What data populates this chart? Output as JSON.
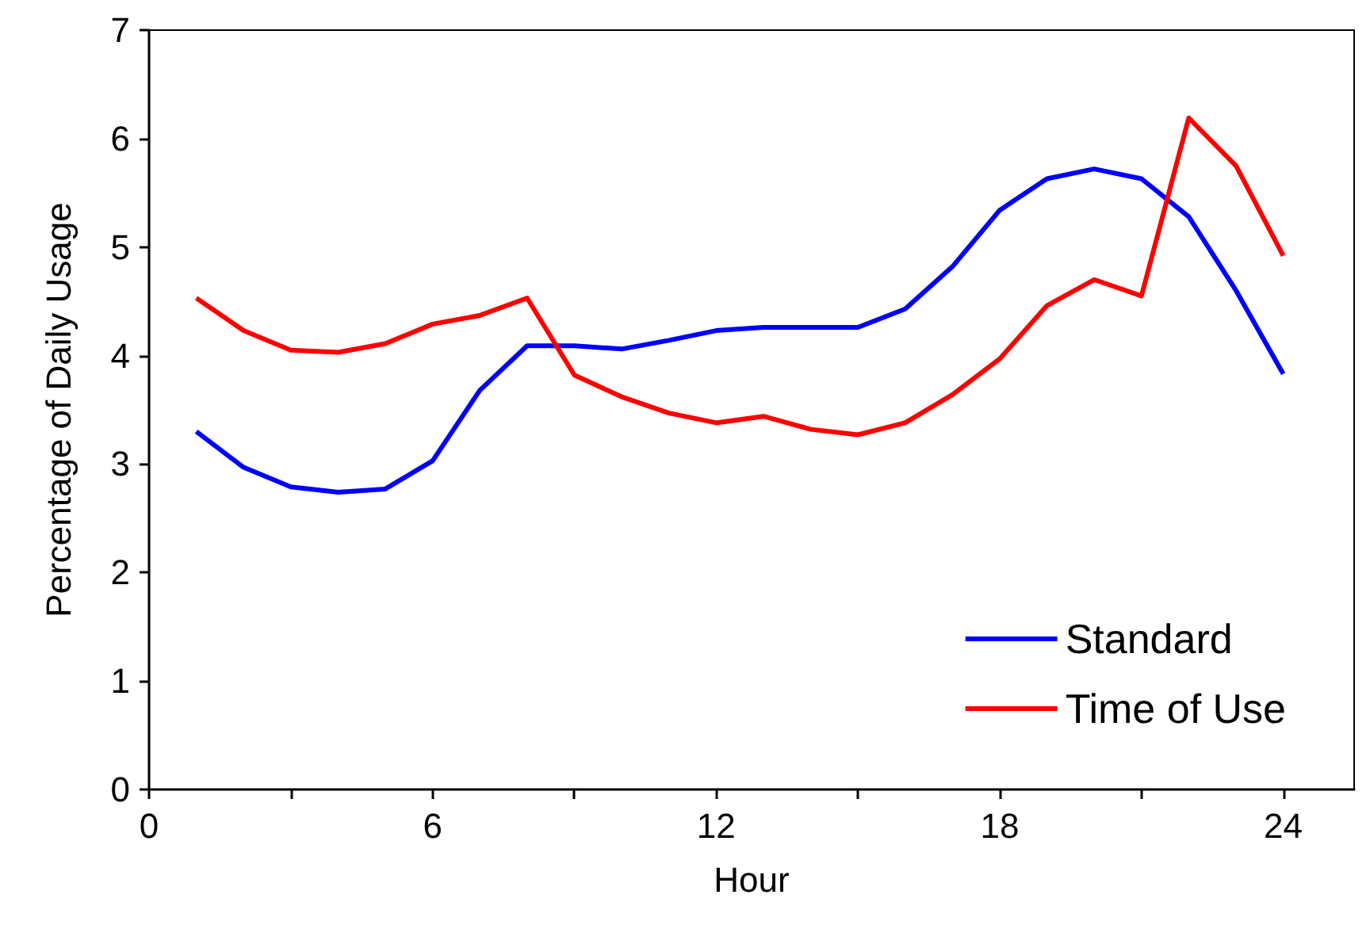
{
  "chart_data": {
    "type": "line",
    "xlabel": "Hour",
    "ylabel": "Percentage of Daily Usage",
    "x": [
      1,
      2,
      3,
      4,
      5,
      6,
      7,
      8,
      9,
      10,
      11,
      12,
      13,
      14,
      15,
      16,
      17,
      18,
      19,
      20,
      21,
      22,
      23,
      24
    ],
    "series": [
      {
        "name": "Standard",
        "color": "#0000ff",
        "values": [
          3.3,
          2.97,
          2.79,
          2.74,
          2.77,
          3.03,
          3.68,
          4.09,
          4.09,
          4.06,
          4.14,
          4.23,
          4.26,
          4.26,
          4.26,
          4.43,
          4.82,
          5.34,
          5.63,
          5.72,
          5.63,
          5.28,
          4.6,
          3.83
        ]
      },
      {
        "name": "Time of Use",
        "color": "#ff0000",
        "values": [
          4.53,
          4.23,
          4.05,
          4.03,
          4.11,
          4.29,
          4.37,
          4.53,
          3.82,
          3.62,
          3.47,
          3.38,
          3.44,
          3.32,
          3.27,
          3.38,
          3.64,
          3.97,
          4.46,
          4.7,
          4.55,
          6.19,
          5.75,
          4.92
        ]
      }
    ],
    "xlim": [
      0,
      25.5
    ],
    "xticks": [
      0,
      {
        "value": 3,
        "label": null
      },
      6,
      {
        "value": 9,
        "label": null
      },
      12,
      {
        "value": 15,
        "label": null
      },
      18,
      {
        "value": 21,
        "label": null
      },
      24
    ],
    "ylim": [
      0,
      7
    ],
    "yticks": [
      0,
      1,
      2,
      3,
      4,
      5,
      6,
      7
    ],
    "grid": false,
    "legend": "bottom right",
    "marker": "none",
    "line_style": "solid"
  }
}
